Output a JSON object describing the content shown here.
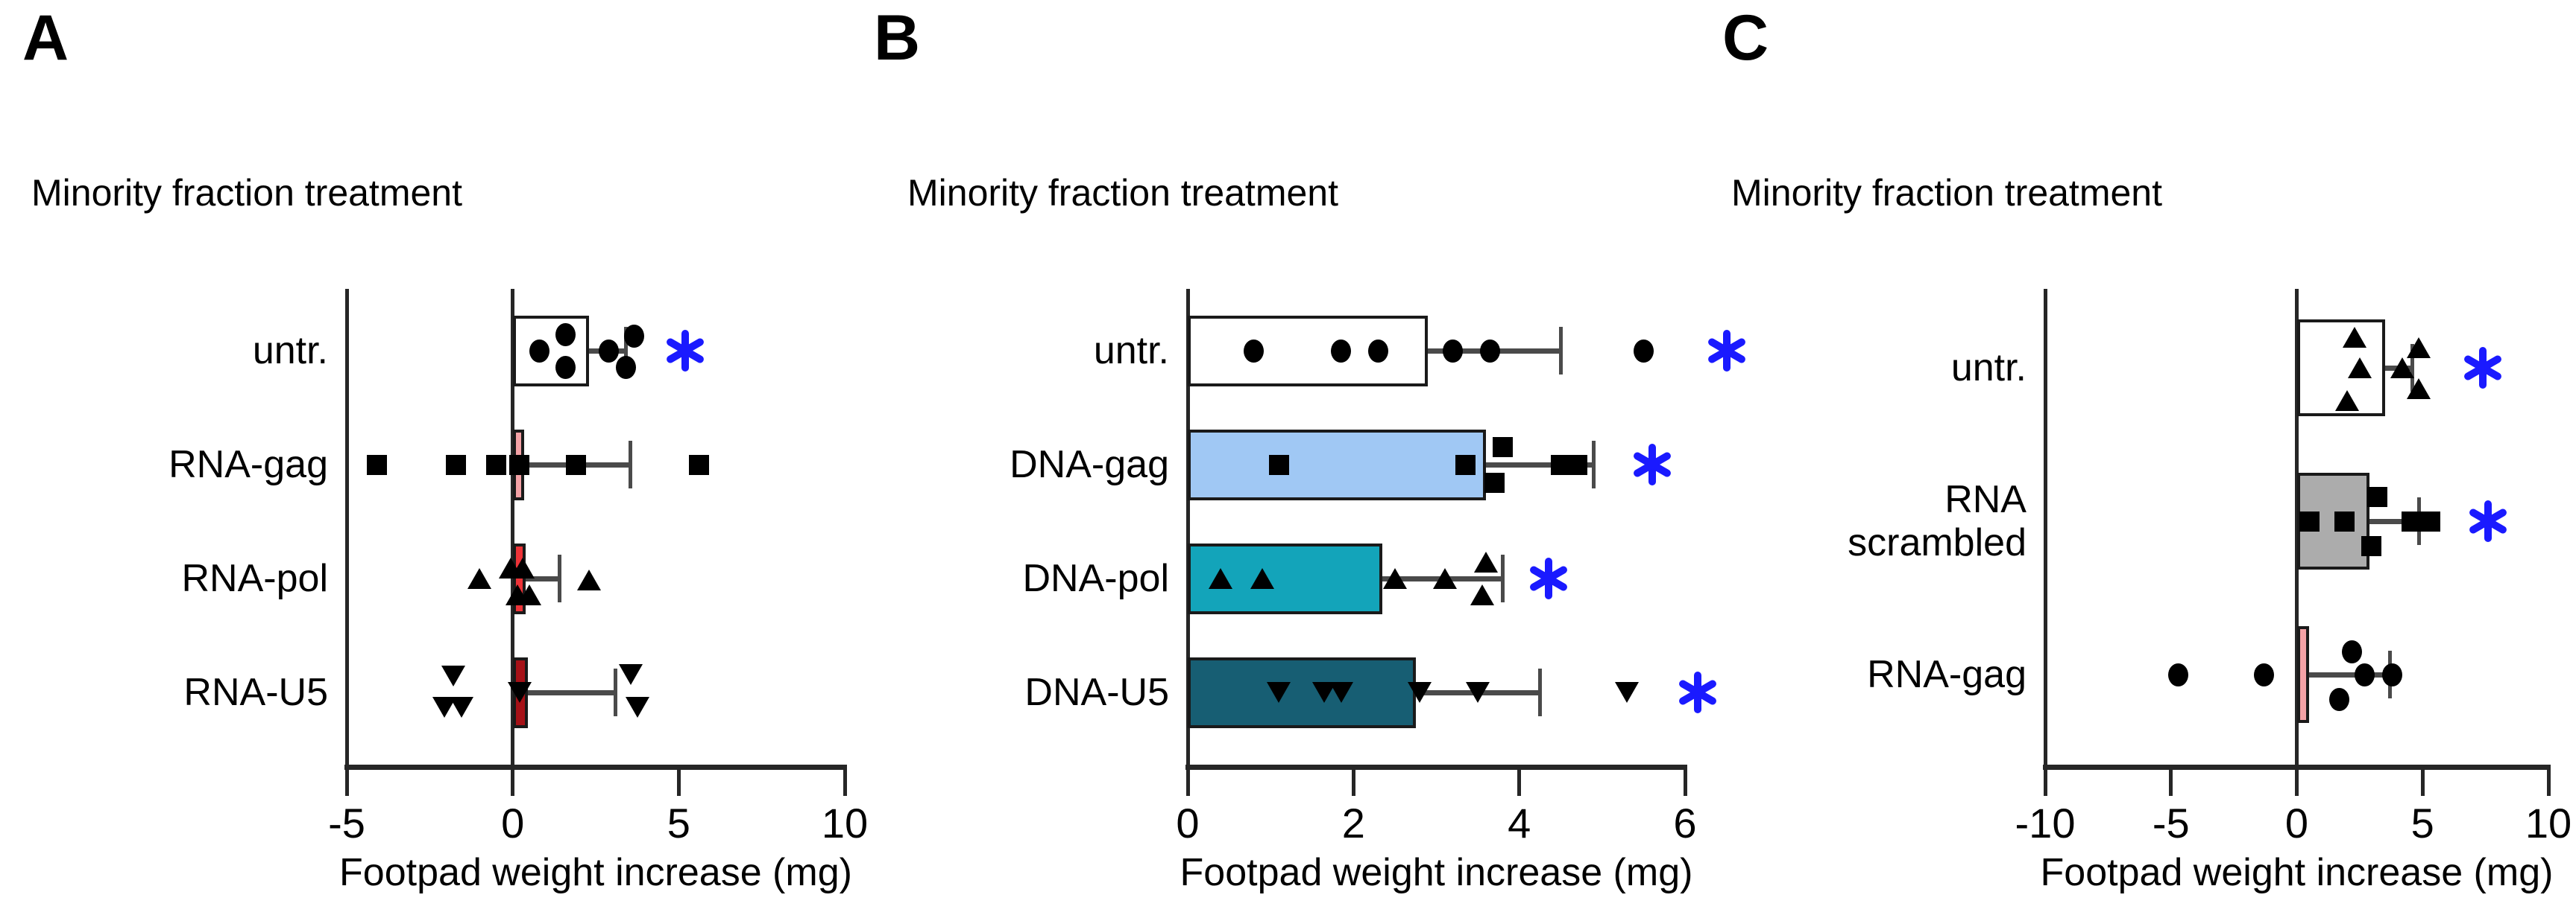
{
  "figure_background": "#ffffff",
  "significance_symbol": "*",
  "styles": {
    "asterisk_color": "#1a1aff",
    "error_bar_color": "#4a4a4a",
    "axis_color": "#262626",
    "bar_border_color": "#1a1a1a",
    "marker_color": "#000000",
    "background": "#ffffff"
  },
  "chart_data": [
    {
      "type": "bar",
      "panel_label": "A",
      "title": "Minority fraction treatment",
      "xlabel": "Footpad weight increase (mg)",
      "orientation": "horizontal",
      "grid": false,
      "legend": null,
      "xlim": [
        -5,
        10
      ],
      "xtick_values": [
        -5,
        0,
        5,
        10
      ],
      "xticks": [
        "-5",
        "0",
        "5",
        "10"
      ],
      "categories": [
        "untr.",
        "RNA-gag",
        "RNA-pol",
        "RNA-U5"
      ],
      "rows": [
        {
          "label": "untr.",
          "marker": "circle",
          "bar_color": "#ffffff",
          "bar_value": 2.3,
          "whisker_to": 3.4,
          "points": [
            [
              0.8,
              0
            ],
            [
              1.6,
              -0.55
            ],
            [
              1.6,
              0.55
            ],
            [
              2.9,
              0
            ],
            [
              3.4,
              0.55
            ],
            [
              3.65,
              -0.5
            ]
          ],
          "asterisk_at": 5.2
        },
        {
          "label": "RNA-gag",
          "marker": "square",
          "bar_color": "#f4a2a6",
          "bar_value": 0.35,
          "whisker_to": 3.55,
          "points": [
            [
              -4.1,
              0
            ],
            [
              -1.7,
              0
            ],
            [
              -0.5,
              0
            ],
            [
              0.2,
              0
            ],
            [
              1.9,
              0
            ],
            [
              5.6,
              0
            ]
          ],
          "asterisk_at": null
        },
        {
          "label": "RNA-pol",
          "marker": "triangle-up",
          "bar_color": "#ee3338",
          "bar_value": 0.4,
          "whisker_to": 1.4,
          "points": [
            [
              -1.0,
              0
            ],
            [
              -0.05,
              -0.35
            ],
            [
              0.3,
              -0.35
            ],
            [
              0.15,
              0.55
            ],
            [
              0.5,
              0.55
            ],
            [
              2.3,
              0.05
            ]
          ],
          "asterisk_at": null
        },
        {
          "label": "RNA-U5",
          "marker": "triangle-down",
          "bar_color": "#a61117",
          "bar_value": 0.45,
          "whisker_to": 3.1,
          "points": [
            [
              -1.8,
              -0.55
            ],
            [
              -2.05,
              0.5
            ],
            [
              -1.55,
              0.5
            ],
            [
              0.2,
              0
            ],
            [
              3.55,
              -0.6
            ],
            [
              3.75,
              0.5
            ]
          ],
          "asterisk_at": null
        }
      ]
    },
    {
      "type": "bar",
      "panel_label": "B",
      "title": "Minority fraction treatment",
      "xlabel": "Footpad weight increase (mg)",
      "orientation": "horizontal",
      "grid": false,
      "legend": null,
      "xlim": [
        0,
        6
      ],
      "xtick_values": [
        0,
        2,
        4,
        6
      ],
      "xticks": [
        "0",
        "2",
        "4",
        "6"
      ],
      "categories": [
        "untr.",
        "DNA-gag",
        "DNA-pol",
        "DNA-U5"
      ],
      "rows": [
        {
          "label": "untr.",
          "marker": "circle",
          "bar_color": "#ffffff",
          "bar_value": 2.9,
          "whisker_to": 4.5,
          "points": [
            [
              0.8,
              0
            ],
            [
              1.85,
              0
            ],
            [
              2.3,
              0
            ],
            [
              3.2,
              0
            ],
            [
              3.65,
              0
            ],
            [
              5.5,
              0
            ]
          ],
          "asterisk_at": 6.5
        },
        {
          "label": "DNA-gag",
          "marker": "square",
          "bar_color": "#a0c8f4",
          "bar_value": 3.6,
          "whisker_to": 4.9,
          "points": [
            [
              1.1,
              0
            ],
            [
              3.35,
              0
            ],
            [
              3.8,
              -0.6
            ],
            [
              3.7,
              0.6
            ],
            [
              4.5,
              0
            ],
            [
              4.7,
              0
            ]
          ],
          "asterisk_at": 5.6
        },
        {
          "label": "DNA-pol",
          "marker": "triangle-up",
          "bar_color": "#13a4ba",
          "bar_value": 2.35,
          "whisker_to": 3.8,
          "points": [
            [
              0.4,
              0
            ],
            [
              0.9,
              0
            ],
            [
              2.5,
              0
            ],
            [
              3.1,
              0
            ],
            [
              3.6,
              -0.55
            ],
            [
              3.55,
              0.55
            ]
          ],
          "asterisk_at": 4.35
        },
        {
          "label": "DNA-U5",
          "marker": "triangle-down",
          "bar_color": "#175e73",
          "bar_value": 2.75,
          "whisker_to": 4.25,
          "points": [
            [
              1.1,
              0
            ],
            [
              1.65,
              0
            ],
            [
              1.85,
              0
            ],
            [
              2.8,
              0
            ],
            [
              3.5,
              0
            ],
            [
              5.3,
              0
            ]
          ],
          "asterisk_at": 6.15
        }
      ]
    },
    {
      "type": "bar",
      "panel_label": "C",
      "title": "Minority fraction treatment",
      "xlabel": "Footpad weight increase (mg)",
      "orientation": "horizontal",
      "grid": false,
      "legend": null,
      "xlim": [
        -10,
        10
      ],
      "xtick_values": [
        -10,
        -5,
        0,
        5,
        10
      ],
      "xticks": [
        "-10",
        "-5",
        "0",
        "5",
        "10"
      ],
      "categories": [
        "untr.",
        "RNA scrambled",
        "RNA-gag"
      ],
      "rows": [
        {
          "label": "untr.",
          "marker": "triangle-up",
          "bar_color": "#ffffff",
          "bar_value": 3.5,
          "whisker_to": 4.6,
          "points": [
            [
              2.3,
              -0.75
            ],
            [
              2.5,
              0
            ],
            [
              2.0,
              0.8
            ],
            [
              4.2,
              0
            ],
            [
              4.85,
              -0.5
            ],
            [
              4.85,
              0.5
            ]
          ],
          "asterisk_at": 7.4
        },
        {
          "label": "RNA\nscrambled",
          "marker": "square",
          "bar_color": "#acacac",
          "bar_value": 2.9,
          "whisker_to": 4.85,
          "points": [
            [
              0.5,
              0
            ],
            [
              1.9,
              0
            ],
            [
              3.2,
              -0.6
            ],
            [
              2.95,
              0.6
            ],
            [
              4.55,
              0
            ],
            [
              5.3,
              0
            ]
          ],
          "asterisk_at": 7.6
        },
        {
          "label": "RNA-gag",
          "marker": "circle",
          "bar_color": "#f4a2a6",
          "bar_value": 0.5,
          "whisker_to": 3.7,
          "points": [
            [
              -4.7,
              0
            ],
            [
              -1.3,
              0
            ],
            [
              2.2,
              -0.55
            ],
            [
              1.7,
              0.6
            ],
            [
              2.7,
              0
            ],
            [
              3.8,
              0
            ]
          ],
          "asterisk_at": null
        }
      ]
    }
  ]
}
